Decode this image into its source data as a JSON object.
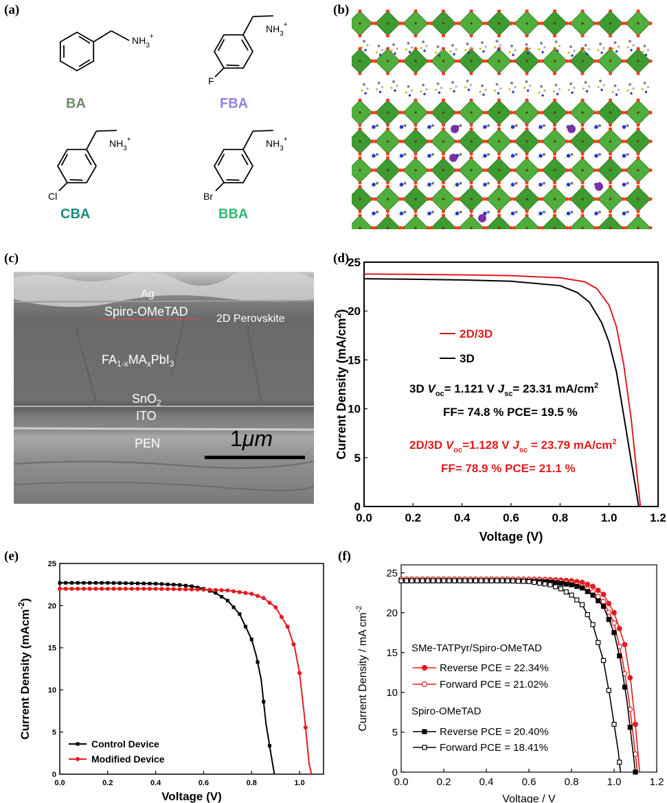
{
  "panel_labels": {
    "a": "(a)",
    "b": "(b)",
    "c": "(c)",
    "d": "(d)",
    "e": "(e)",
    "f": "(f)"
  },
  "colors": {
    "ba": "#6e8b6a",
    "fba": "#9a7fe0",
    "cba": "#1b8a84",
    "bba": "#2eb872",
    "red": "#e31a1c",
    "black": "#000000"
  },
  "panel_a": {
    "molecules": [
      {
        "name": "BA",
        "substituent": "",
        "group": "NH3+"
      },
      {
        "name": "FBA",
        "substituent": "F",
        "group": "NH3+"
      },
      {
        "name": "CBA",
        "substituent": "Cl",
        "group": "NH3+"
      },
      {
        "name": "BBA",
        "substituent": "Br",
        "group": "NH3+"
      }
    ],
    "nh3_main": "NH",
    "nh3_sub": "3",
    "nh3_sup": "+"
  },
  "panel_b": {
    "description_icon": "crystal-structure-icon"
  },
  "panel_c": {
    "layers": {
      "ag": "Ag",
      "spiro": "Spiro-OMeTAD",
      "perov2d": "2D Perovskite",
      "fa_a": "FA",
      "fa_b": "1-x",
      "fa_c": "MA",
      "fa_d": "x",
      "fa_e": "PbI",
      "fa_f": "3",
      "sno_a": "SnO",
      "sno_b": "2",
      "ito": "ITO",
      "pen": "PEN"
    },
    "scale_bar_a": "1",
    "scale_bar_b": "μm"
  },
  "chart_data": [
    {
      "panel": "d",
      "type": "line",
      "xlabel": "Voltage (V)",
      "ylabel_a": "Current Density (mA/cm",
      "ylabel_b": "2",
      "ylabel_c": ")",
      "xlim": [
        0,
        1.2
      ],
      "ylim": [
        0,
        25
      ],
      "xticks": [
        "0.0",
        "0.2",
        "0.4",
        "0.6",
        "0.8",
        "1.0",
        "1.2"
      ],
      "yticks": [
        "0",
        "5",
        "10",
        "15",
        "20",
        "25"
      ],
      "legend": [
        "2D/3D",
        "3D"
      ],
      "series": [
        {
          "name": "2D/3D",
          "color": "#e31a1c",
          "x": [
            0,
            0.2,
            0.4,
            0.6,
            0.8,
            0.9,
            0.95,
            1.0,
            1.03,
            1.06,
            1.09,
            1.11,
            1.128
          ],
          "y": [
            23.79,
            23.75,
            23.7,
            23.62,
            23.4,
            23.0,
            22.3,
            20.6,
            18.4,
            14.5,
            9.0,
            4.2,
            0
          ]
        },
        {
          "name": "3D",
          "color": "#000000",
          "x": [
            0,
            0.2,
            0.4,
            0.6,
            0.8,
            0.87,
            0.92,
            0.97,
            1.0,
            1.03,
            1.06,
            1.09,
            1.121
          ],
          "y": [
            23.31,
            23.25,
            23.18,
            23.05,
            22.6,
            21.9,
            20.9,
            18.8,
            16.8,
            13.8,
            9.3,
            4.7,
            0
          ]
        }
      ],
      "annotations": {
        "d3_a": "3D   ",
        "d3_v": "V",
        "d3_oc": "oc",
        "d3_b": "= 1.121 V   ",
        "d3_j": "J",
        "d3_sc": "sc",
        "d3_c": "= 23.31 mA/cm",
        "d3_sup": "2",
        "d3_line2": "FF= 74.8 %    PCE= 19.5 %",
        "d23_a": "2D/3D ",
        "d23_v": "V",
        "d23_oc": "oc",
        "d23_b": "=1.128 V   ",
        "d23_j": "J",
        "d23_sc": "sc",
        "d23_c": " = 23.79 mA/cm",
        "d23_sup": "2",
        "d23_line2": "FF= 78.9 %      PCE= 21.1 %"
      }
    },
    {
      "panel": "e",
      "type": "line",
      "xlabel": "Voltage (V)",
      "ylabel_a": "Current Density (mAcm",
      "ylabel_b": "-2",
      "ylabel_c": ")",
      "xlim": [
        0,
        1.1
      ],
      "ylim": [
        0,
        25
      ],
      "xticks": [
        "0.0",
        "0.2",
        "0.4",
        "0.6",
        "0.8",
        "1.0"
      ],
      "yticks": [
        "0",
        "5",
        "10",
        "15",
        "20",
        "25"
      ],
      "legend": [
        "Control Device",
        "Modified Device"
      ],
      "series": [
        {
          "name": "Control Device",
          "color": "#000000",
          "x": [
            0,
            0.1,
            0.2,
            0.3,
            0.4,
            0.5,
            0.55,
            0.6,
            0.65,
            0.7,
            0.75,
            0.8,
            0.82,
            0.84,
            0.86,
            0.88,
            0.895
          ],
          "y": [
            22.7,
            22.7,
            22.7,
            22.65,
            22.6,
            22.45,
            22.3,
            22.0,
            21.5,
            20.6,
            19.0,
            16.0,
            14.0,
            11.2,
            6.0,
            2.5,
            0
          ]
        },
        {
          "name": "Modified Device",
          "color": "#e31a1c",
          "x": [
            0,
            0.1,
            0.2,
            0.3,
            0.4,
            0.5,
            0.6,
            0.7,
            0.8,
            0.85,
            0.9,
            0.95,
            0.98,
            1.0,
            1.02,
            1.04,
            1.05
          ],
          "y": [
            22.0,
            22.0,
            22.0,
            22.0,
            22.0,
            21.95,
            21.9,
            21.8,
            21.4,
            20.9,
            19.8,
            17.5,
            15.0,
            12.0,
            7.0,
            1.2,
            0
          ]
        }
      ]
    },
    {
      "panel": "f",
      "type": "line",
      "xlabel": "Voltage / V",
      "ylabel_a": "Current Density / mA cm",
      "ylabel_b": "-2",
      "ylabel_c": "",
      "xlim": [
        0,
        1.2
      ],
      "ylim": [
        0,
        26
      ],
      "xticks": [
        "0.0",
        "0.2",
        "0.4",
        "0.6",
        "0.8",
        "1.0",
        "1.2"
      ],
      "yticks": [
        "0",
        "5",
        "10",
        "15",
        "20",
        "25"
      ],
      "legend_header_1": "SMe-TATPyr/Spiro-OMeTAD",
      "legend_header_2": "Spiro-OMeTAD",
      "series": [
        {
          "name": "Reverse PCE = 22.34%",
          "color": "#e31a1c",
          "filled": true,
          "x": [
            0,
            0.1,
            0.2,
            0.3,
            0.4,
            0.5,
            0.6,
            0.7,
            0.8,
            0.85,
            0.9,
            0.95,
            1.0,
            1.05,
            1.08,
            1.1,
            1.12
          ],
          "y": [
            24.2,
            24.2,
            24.2,
            24.2,
            24.2,
            24.2,
            24.2,
            24.15,
            24.0,
            23.8,
            23.3,
            22.3,
            20.0,
            16.0,
            11.0,
            6.0,
            0
          ]
        },
        {
          "name": "Forward PCE = 21.02%",
          "color": "#e31a1c",
          "filled": false,
          "x": [
            0,
            0.1,
            0.2,
            0.3,
            0.4,
            0.5,
            0.6,
            0.7,
            0.8,
            0.85,
            0.9,
            0.95,
            1.0,
            1.04,
            1.07,
            1.09,
            1.11
          ],
          "y": [
            24.2,
            24.2,
            24.2,
            24.2,
            24.2,
            24.2,
            24.15,
            24.05,
            23.7,
            23.3,
            22.6,
            21.4,
            18.7,
            14.0,
            9.0,
            4.5,
            0
          ]
        },
        {
          "name": "Reverse PCE = 20.40%",
          "color": "#000000",
          "filled": true,
          "x": [
            0,
            0.1,
            0.2,
            0.3,
            0.4,
            0.5,
            0.6,
            0.7,
            0.8,
            0.85,
            0.9,
            0.95,
            1.0,
            1.03,
            1.06,
            1.08,
            1.1
          ],
          "y": [
            24.0,
            24.0,
            24.0,
            24.0,
            24.0,
            24.0,
            23.95,
            23.85,
            23.5,
            23.1,
            22.2,
            20.8,
            17.5,
            14.0,
            9.0,
            4.5,
            0
          ]
        },
        {
          "name": "Forward PCE = 18.41%",
          "color": "#000000",
          "filled": false,
          "x": [
            0,
            0.1,
            0.2,
            0.3,
            0.4,
            0.5,
            0.6,
            0.7,
            0.75,
            0.8,
            0.85,
            0.9,
            0.95,
            0.98,
            1.0,
            1.02,
            1.03
          ],
          "y": [
            24.0,
            24.0,
            24.0,
            24.0,
            24.0,
            24.0,
            23.9,
            23.5,
            23.0,
            22.2,
            21.0,
            18.5,
            14.0,
            9.5,
            6.0,
            2.5,
            0
          ]
        }
      ]
    }
  ]
}
